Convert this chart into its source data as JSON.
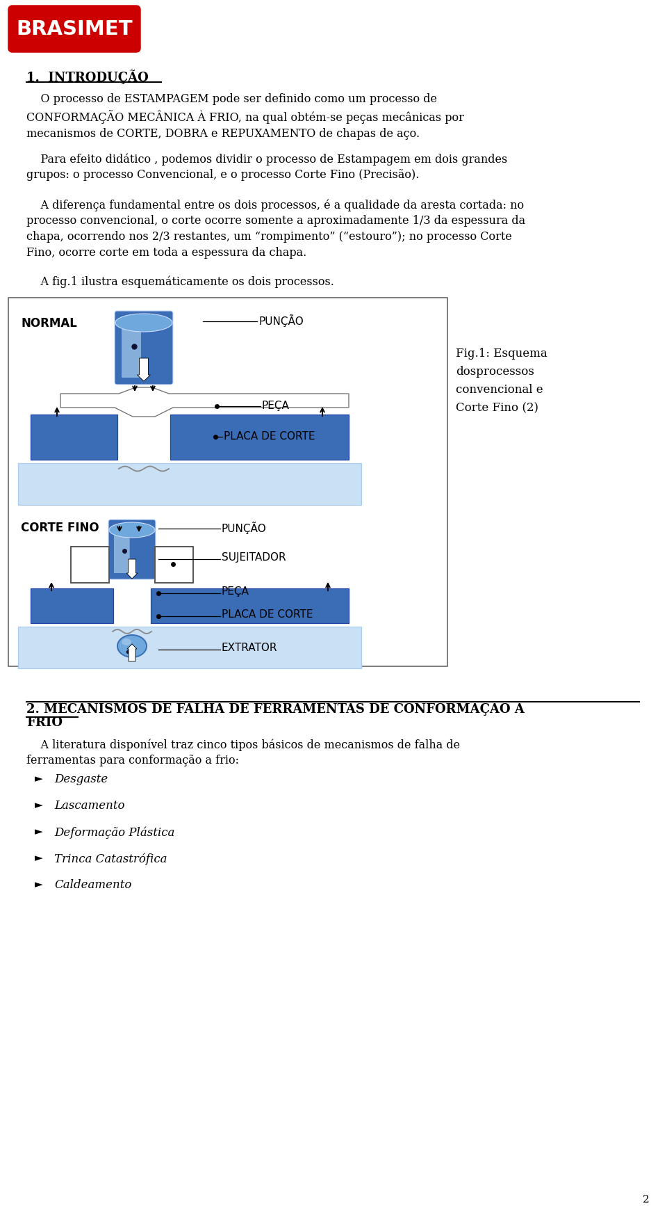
{
  "page_bg": "#ffffff",
  "logo_text": "BRASIMET",
  "logo_bg": "#cc0000",
  "section1_title": "1.  INTRODUÇÃO",
  "para1": "    O processo de ESTAMPAGEM pode ser definido como um processo de\nCONFORMAÇÃO MECÂNICA À FRIO, na qual obtém-se peças mecânicas por\nmecanismos de CORTE, DOBRA e REPUXAMENTO de chapas de aço.",
  "para2": "    Para efeito didático , podemos dividir o processo de Estampagem em dois grandes\ngrupos: o processo Convencional, e o processo Corte Fino (Precisão).",
  "para3": "    A diferença fundamental entre os dois processos, é a qualidade da aresta cortada: no\nprocesso convencional, o corte ocorre somente a aproximadamente 1/3 da espessura da\nchapa, ocorrendo nos 2/3 restantes, um “rompimento” (“estouro”); no processo Corte\nFino, ocorre corte em toda a espessura da chapa.",
  "para4": "    A fig.1 ilustra esquemáticamente os dois processos.",
  "fig_caption": "Fig.1: Esquema\ndosprocessos\nconvencional e\nCorte Fino (2)",
  "label_normal": "NORMAL",
  "label_puncao1": "PUNÇÃO",
  "label_peca1": "PEÇA",
  "label_placa1": "PLACA DE CORTE",
  "label_corte_fino": "CORTE FINO",
  "label_puncao2": "PUNÇÃO",
  "label_sujeitador": "SUJEITADOR",
  "label_peca2": "PEÇA",
  "label_placa2": "PLACA DE CORTE",
  "label_extrator": "EXTRATOR",
  "section2_line1": "2. MECANISMOS DE FALHA DE FERRAMENTAS DE CONFORMAÇÃO A",
  "section2_line2": "FRIO",
  "para5": "    A literatura disponível traz cinco tipos básicos de mecanismos de falha de\nferramentas para conformação a frio:",
  "bullets": [
    "Desgaste",
    "Lascamento",
    "Deformação Plástica",
    "Trinca Catastrófica",
    "Caldeamento"
  ],
  "page_number": "2",
  "text_color": "#000000",
  "blue_dark": "#3a6db5",
  "blue_mid": "#6fa8dc",
  "blue_light": "#9fc5e8",
  "blue_vlight": "#c9e0f5"
}
